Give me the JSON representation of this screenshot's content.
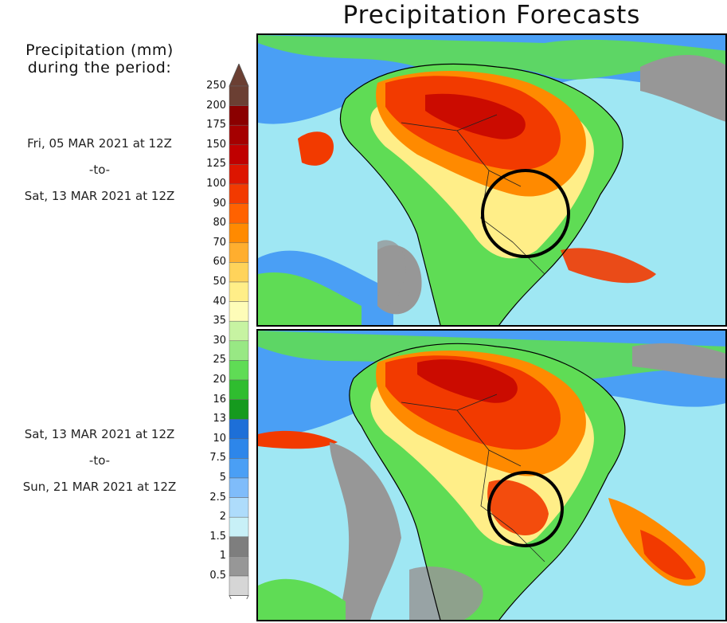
{
  "title": "Precipitation Forecasts",
  "legend": {
    "heading_line1": "Precipitation (mm)",
    "heading_line2": "during the period:",
    "levels": [
      {
        "value": "250",
        "color": "#6b3f33"
      },
      {
        "value": "200",
        "color": "#8b0000"
      },
      {
        "value": "175",
        "color": "#a50000"
      },
      {
        "value": "150",
        "color": "#c00000"
      },
      {
        "value": "125",
        "color": "#dd1500"
      },
      {
        "value": "100",
        "color": "#f23a00"
      },
      {
        "value": "90",
        "color": "#ff6200"
      },
      {
        "value": "80",
        "color": "#ff8a00"
      },
      {
        "value": "70",
        "color": "#ffae2e"
      },
      {
        "value": "60",
        "color": "#ffd35a"
      },
      {
        "value": "50",
        "color": "#ffee88"
      },
      {
        "value": "40",
        "color": "#fefcb8"
      },
      {
        "value": "35",
        "color": "#c7f3a2"
      },
      {
        "value": "30",
        "color": "#98e884"
      },
      {
        "value": "25",
        "color": "#5fdc55"
      },
      {
        "value": "20",
        "color": "#2fbd2f"
      },
      {
        "value": "16",
        "color": "#159a1e"
      },
      {
        "value": "13",
        "color": "#1d6fd8"
      },
      {
        "value": "10",
        "color": "#2d86ea"
      },
      {
        "value": "7.5",
        "color": "#4a9ff5"
      },
      {
        "value": "5",
        "color": "#7fbcfa"
      },
      {
        "value": "2.5",
        "color": "#aedcfb"
      },
      {
        "value": "2",
        "color": "#c8f0f7"
      },
      {
        "value": "1.5",
        "color": "#7e7e7e"
      },
      {
        "value": "1",
        "color": "#979797"
      },
      {
        "value": "0.5",
        "color": "#b3b3b3"
      }
    ],
    "below_color": "#d6d6d6",
    "over_color": "#6b3f33",
    "under_color": "#ffffff"
  },
  "periods": [
    {
      "start": "Fri, 05 MAR 2021 at 12Z",
      "sep": "-to-",
      "end": "Sat, 13 MAR 2021 at 12Z"
    },
    {
      "start": "Sat, 13 MAR 2021 at 12Z",
      "sep": "-to-",
      "end": "Sun, 21 MAR 2021 at 12Z"
    }
  ],
  "map_colors": {
    "ocean": "#9fe7f3",
    "ocean_blue": "#4a9ff5",
    "land_green": "#5fdc55",
    "land_yellow": "#ffee88",
    "heavy_orange": "#ff8a00",
    "heavy_red": "#f23a00",
    "very_heavy": "#c00000",
    "dry_grey": "#979797",
    "highlight_circle": "#000000"
  }
}
